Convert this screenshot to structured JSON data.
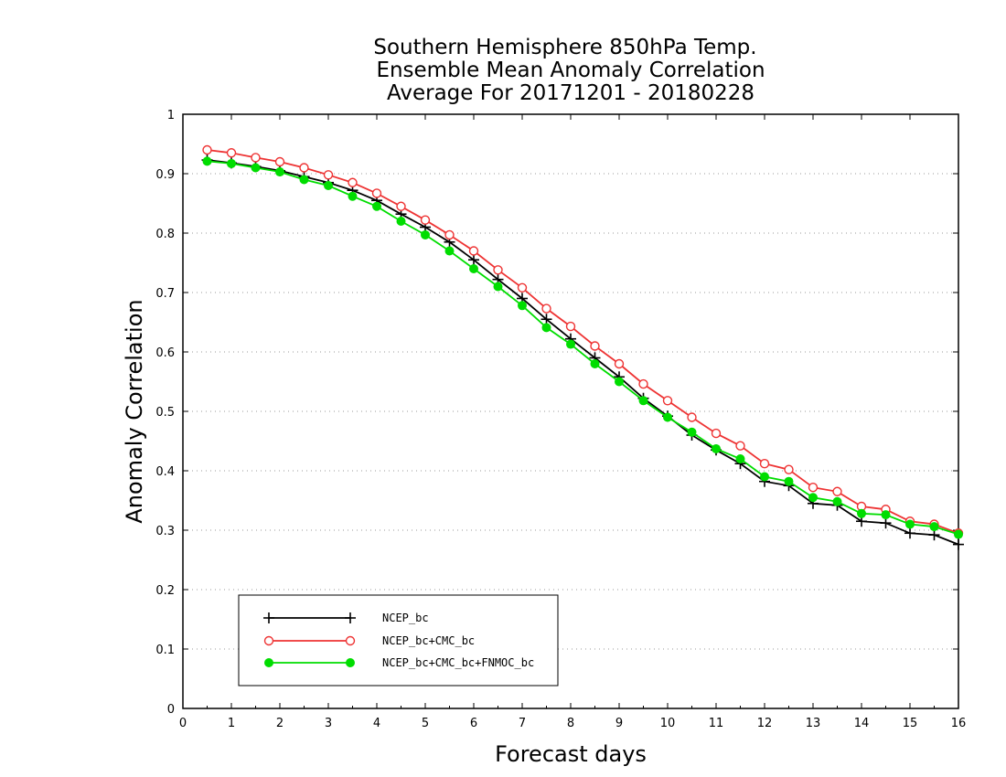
{
  "chart_data": {
    "type": "line",
    "title": [
      "Southern Hemisphere 850hPa Temp.",
      "Ensemble Mean Anomaly Correlation",
      "Average For 20171201 - 20180228"
    ],
    "xlabel": "Forecast days",
    "ylabel": "Anomaly Correlation",
    "xlim": [
      0,
      16
    ],
    "ylim": [
      0,
      1
    ],
    "x_ticks": [
      "0",
      "1",
      "2",
      "3",
      "4",
      "5",
      "6",
      "7",
      "8",
      "9",
      "10",
      "11",
      "12",
      "13",
      "14",
      "15",
      "16"
    ],
    "y_ticks": [
      "0",
      "0.1",
      "0.2",
      "0.3",
      "0.4",
      "0.5",
      "0.6",
      "0.7",
      "0.8",
      "0.9",
      "1"
    ],
    "grid": "horizontal dotted",
    "legend_position": "bottom-left",
    "x": [
      0.5,
      1,
      1.5,
      2,
      2.5,
      3,
      3.5,
      4,
      4.5,
      5,
      5.5,
      6,
      6.5,
      7,
      7.5,
      8,
      8.5,
      9,
      9.5,
      10,
      10.5,
      11,
      11.5,
      12,
      12.5,
      13,
      13.5,
      14,
      14.5,
      15,
      15.5,
      16
    ],
    "series": [
      {
        "name": "NCEP_bc",
        "color": "#000000",
        "marker": "plus",
        "values": [
          0.923,
          0.918,
          0.912,
          0.905,
          0.895,
          0.885,
          0.872,
          0.855,
          0.832,
          0.81,
          0.785,
          0.755,
          0.722,
          0.69,
          0.655,
          0.622,
          0.59,
          0.558,
          0.522,
          0.492,
          0.46,
          0.435,
          0.412,
          0.382,
          0.375,
          0.345,
          0.342,
          0.315,
          0.312,
          0.295,
          0.292,
          0.276
        ]
      },
      {
        "name": "NCEP_bc+CMC_bc",
        "color": "#ee3333",
        "marker": "open-circle",
        "values": [
          0.94,
          0.935,
          0.927,
          0.92,
          0.91,
          0.898,
          0.885,
          0.867,
          0.845,
          0.822,
          0.797,
          0.77,
          0.738,
          0.708,
          0.673,
          0.643,
          0.61,
          0.58,
          0.546,
          0.518,
          0.49,
          0.463,
          0.442,
          0.412,
          0.402,
          0.372,
          0.365,
          0.34,
          0.335,
          0.315,
          0.31,
          0.295
        ]
      },
      {
        "name": "NCEP_bc+CMC_bc+FNMOC_bc",
        "color": "#00dd00",
        "marker": "filled-circle",
        "values": [
          0.921,
          0.917,
          0.91,
          0.903,
          0.89,
          0.88,
          0.862,
          0.845,
          0.82,
          0.797,
          0.77,
          0.74,
          0.71,
          0.678,
          0.641,
          0.613,
          0.58,
          0.55,
          0.518,
          0.49,
          0.465,
          0.437,
          0.42,
          0.39,
          0.382,
          0.355,
          0.348,
          0.328,
          0.326,
          0.31,
          0.306,
          0.293
        ]
      }
    ]
  }
}
